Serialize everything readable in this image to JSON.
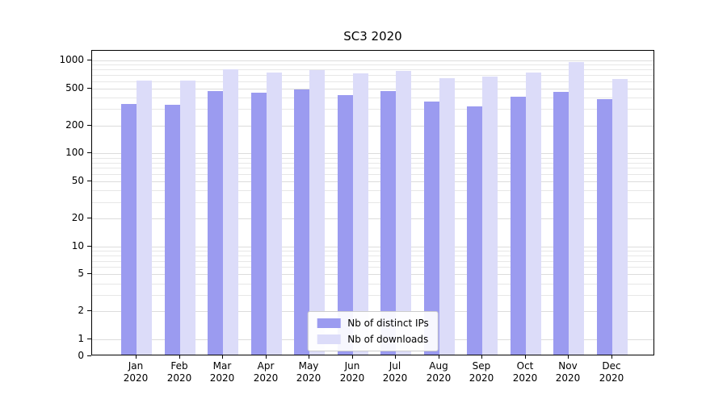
{
  "chart_data": {
    "type": "bar",
    "title": "SC3 2020",
    "categories": [
      "Jan",
      "Feb",
      "Mar",
      "Apr",
      "May",
      "Jun",
      "Jul",
      "Aug",
      "Sep",
      "Oct",
      "Nov",
      "Dec"
    ],
    "year_label": "2020",
    "series": [
      {
        "name": "Nb of distinct IPs",
        "color": "#9b9bf0",
        "values": [
          330,
          320,
          450,
          430,
          465,
          405,
          450,
          345,
          310,
          390,
          440,
          370
        ]
      },
      {
        "name": "Nb of downloads",
        "color": "#dcdcf9",
        "values": [
          590,
          585,
          780,
          720,
          760,
          700,
          745,
          620,
          645,
          720,
          920,
          610
        ]
      }
    ],
    "yscale": "symlog",
    "yticks": [
      0,
      1,
      2,
      5,
      10,
      20,
      50,
      100,
      200,
      500,
      1000
    ],
    "ylim": [
      0,
      1273
    ],
    "xlabel": "",
    "ylabel": "",
    "grid": true,
    "legend_position": "lower center"
  }
}
